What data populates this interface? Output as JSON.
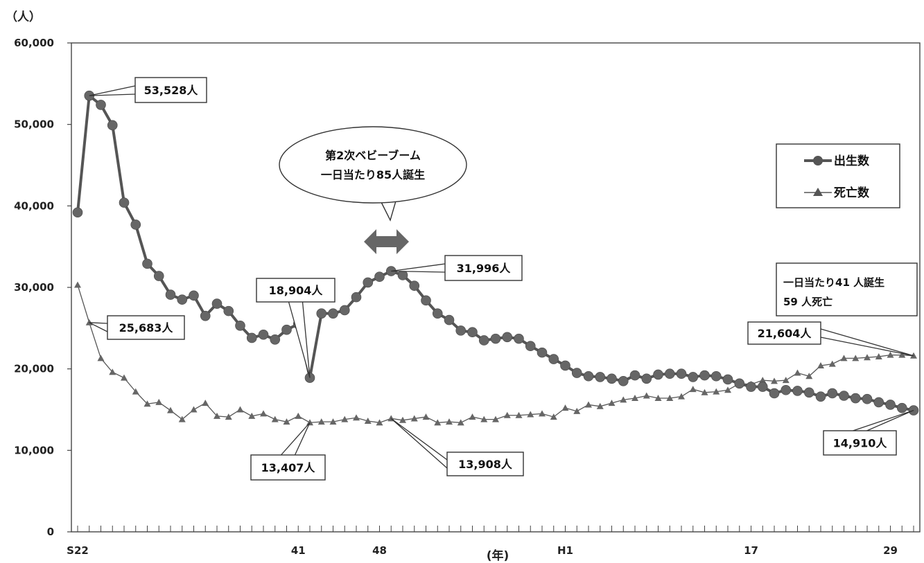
{
  "chart_data": {
    "type": "line",
    "ylabel": "（人）",
    "xlabel": "(年)",
    "ylim": [
      0,
      60000
    ],
    "yticks": [
      "0",
      "10,000",
      "20,000",
      "30,000",
      "40,000",
      "50,000",
      "60,000"
    ],
    "xtick_labels": [
      {
        "label": "S22",
        "index": 0
      },
      {
        "label": "41",
        "index": 19
      },
      {
        "label": "48",
        "index": 26
      },
      {
        "label": "H1",
        "index": 42
      },
      {
        "label": "17",
        "index": 58
      },
      {
        "label": "29",
        "index": 70
      }
    ],
    "legend": {
      "placement": "right"
    },
    "series": [
      {
        "name": "出生数",
        "marker": "circle",
        "color": "#555555",
        "values": [
          39200,
          53528,
          52400,
          49900,
          40400,
          37700,
          32900,
          31400,
          29100,
          28500,
          29000,
          26500,
          28000,
          27100,
          25300,
          23800,
          24200,
          23600,
          24800,
          25500,
          18904,
          26800,
          26800,
          27200,
          28800,
          30600,
          31300,
          31996,
          31500,
          30200,
          28400,
          26800,
          26000,
          24700,
          24500,
          23500,
          23700,
          23900,
          23700,
          22800,
          22000,
          21200,
          20400,
          19500,
          19100,
          19000,
          18800,
          18500,
          19200,
          18800,
          19300,
          19400,
          19400,
          19000,
          19200,
          19100,
          18700,
          18200,
          17800,
          17800,
          17000,
          17400,
          17300,
          17100,
          16600,
          17000,
          16700,
          16400,
          16300,
          15900,
          15600,
          15200,
          14910
        ]
      },
      {
        "name": "死亡数",
        "marker": "triangle",
        "color": "#555555",
        "values": [
          30300,
          25683,
          21300,
          19600,
          18900,
          17200,
          15700,
          15900,
          14900,
          13800,
          15000,
          15800,
          14200,
          14100,
          15000,
          14200,
          14500,
          13800,
          13500,
          14200,
          13407,
          13500,
          13500,
          13800,
          14000,
          13600,
          13400,
          13908,
          13700,
          13900,
          14100,
          13400,
          13500,
          13400,
          14100,
          13800,
          13800,
          14300,
          14300,
          14400,
          14500,
          14100,
          15200,
          14800,
          15600,
          15400,
          15800,
          16200,
          16400,
          16700,
          16400,
          16400,
          16600,
          17500,
          17100,
          17200,
          17400,
          18200,
          18100,
          18600,
          18500,
          18600,
          19500,
          19100,
          20400,
          20600,
          21300,
          21300,
          21400,
          21500,
          21700,
          21700,
          21604
        ]
      }
    ],
    "annotations": [
      {
        "text": "53,528人"
      },
      {
        "text": "25,683人"
      },
      {
        "text": "18,904人"
      },
      {
        "text": "13,407人"
      },
      {
        "text": "31,996人"
      },
      {
        "text": "13,908人"
      },
      {
        "text": "21,604人"
      },
      {
        "text": "14,910人"
      }
    ],
    "bubble": [
      "第2次ベビーブーム",
      "一日当たり85人誕生"
    ],
    "info_box": [
      "一日当たり41 人誕生",
      "59 人死亡"
    ]
  }
}
